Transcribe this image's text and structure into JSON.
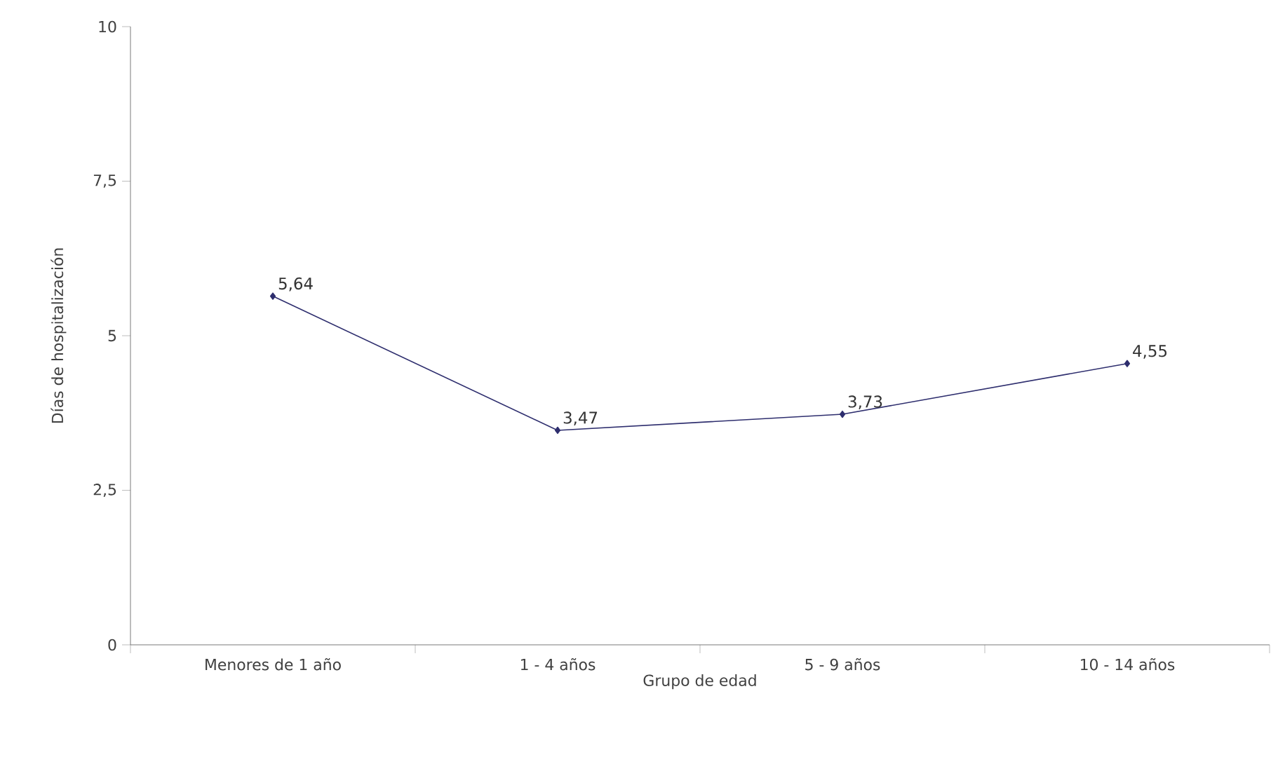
{
  "chart_data": {
    "type": "line",
    "xlabel": "Grupo de edad",
    "ylabel": "Días de hospitalización",
    "categories": [
      "Menores de 1 año",
      "1 - 4 años",
      "5 - 9 años",
      "10 - 14 años"
    ],
    "values": [
      5.64,
      3.47,
      3.73,
      4.55
    ],
    "value_labels": [
      "5,64",
      "3,47",
      "3,73",
      "4,55"
    ],
    "color": "#2e2e6e",
    "marker": "diamond",
    "grid": false,
    "ylim": [
      0,
      10
    ],
    "yticks": [
      0,
      {
        "value": 2.5,
        "label": "2,5"
      },
      5,
      {
        "value": 7.5,
        "label": "7,5"
      },
      10
    ]
  }
}
